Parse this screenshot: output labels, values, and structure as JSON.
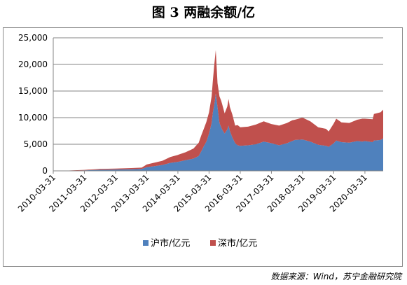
{
  "title": "图 3 两融余额/亿",
  "source": "数据来源：Wind，苏宁金融研究院",
  "chart_data": {
    "type": "area",
    "stacked": true,
    "title": "图 3 两融余额/亿",
    "xlabel": "",
    "ylabel": "",
    "ylim": [
      0,
      25000
    ],
    "yticks": [
      0,
      5000,
      10000,
      15000,
      20000,
      25000
    ],
    "ytick_labels": [
      "0",
      "5,000",
      "10,000",
      "15,000",
      "20,000",
      "25,000"
    ],
    "xlim": [
      "2010-03-31",
      "2020-10-31"
    ],
    "xtick_labels": [
      "2010-03-31",
      "2011-03-31",
      "2012-03-31",
      "2013-03-31",
      "2014-03-31",
      "2015-03-31",
      "2016-03-31",
      "2017-03-31",
      "2018-03-31",
      "2019-03-31",
      "2020-03-31"
    ],
    "grid": true,
    "legend_position": "bottom",
    "x": [
      "2010-03-31",
      "2010-09-30",
      "2011-03-31",
      "2011-09-30",
      "2012-03-31",
      "2012-09-30",
      "2013-01-31",
      "2013-03-31",
      "2013-06-30",
      "2013-09-30",
      "2013-12-31",
      "2014-03-31",
      "2014-06-30",
      "2014-09-30",
      "2014-11-30",
      "2014-12-31",
      "2015-01-31",
      "2015-02-28",
      "2015-03-31",
      "2015-04-30",
      "2015-05-15",
      "2015-05-31",
      "2015-06-18",
      "2015-07-08",
      "2015-07-31",
      "2015-08-20",
      "2015-08-31",
      "2015-09-30",
      "2015-10-31",
      "2015-11-15",
      "2015-11-30",
      "2015-12-31",
      "2016-01-31",
      "2016-02-29",
      "2016-03-31",
      "2016-06-30",
      "2016-09-30",
      "2016-12-31",
      "2017-03-31",
      "2017-06-30",
      "2017-09-30",
      "2017-11-30",
      "2017-12-31",
      "2018-03-31",
      "2018-06-30",
      "2018-09-30",
      "2018-12-31",
      "2019-01-31",
      "2019-03-31",
      "2019-04-30",
      "2019-06-30",
      "2019-09-30",
      "2019-12-31",
      "2020-02-29",
      "2020-03-31",
      "2020-06-30",
      "2020-07-15",
      "2020-09-30",
      "2020-10-31"
    ],
    "series": [
      {
        "name": "沪市/亿元",
        "color": "#4f81bd",
        "values": [
          0,
          40,
          100,
          200,
          250,
          300,
          350,
          700,
          900,
          1100,
          1500,
          1700,
          2000,
          2300,
          2800,
          3700,
          4700,
          5500,
          7000,
          9000,
          11000,
          12300,
          14500,
          12000,
          9000,
          8200,
          7800,
          7000,
          7800,
          8500,
          7500,
          6200,
          5200,
          4800,
          4700,
          4800,
          5000,
          5500,
          5200,
          4800,
          5200,
          5600,
          5800,
          5900,
          5500,
          4900,
          4700,
          4500,
          5200,
          5700,
          5400,
          5300,
          5600,
          5500,
          5600,
          5400,
          5700,
          5800,
          6100
        ]
      },
      {
        "name": "深市/亿元",
        "color": "#c0504d",
        "values": [
          0,
          30,
          80,
          150,
          180,
          220,
          250,
          500,
          650,
          800,
          1100,
          1300,
          1500,
          1900,
          2500,
          3000,
          3300,
          3700,
          4000,
          5000,
          6000,
          7500,
          8200,
          4500,
          5000,
          5000,
          4800,
          3800,
          4300,
          5000,
          4500,
          4300,
          3300,
          3800,
          3500,
          3500,
          3700,
          3800,
          3600,
          3700,
          3800,
          3900,
          3800,
          4100,
          3800,
          3300,
          3200,
          2900,
          3700,
          4100,
          3700,
          3700,
          4000,
          4300,
          4200,
          4300,
          5000,
          5200,
          5400
        ]
      }
    ]
  }
}
